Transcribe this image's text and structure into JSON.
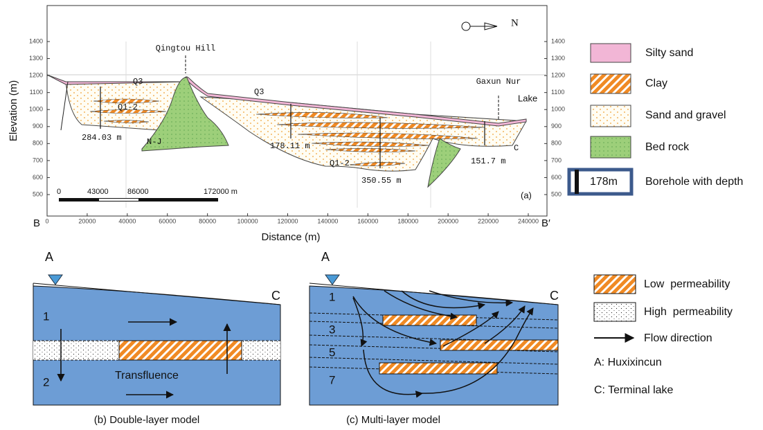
{
  "panel_a": {
    "y_axis_title": "Elevation (m)",
    "x_axis_title": "Distance (m)",
    "yticks": [
      500,
      600,
      700,
      800,
      900,
      1000,
      1100,
      1200,
      1300,
      1400
    ],
    "xticks": [
      0,
      20000,
      40000,
      60000,
      80000,
      100000,
      120000,
      140000,
      160000,
      180000,
      200000,
      220000,
      240000
    ],
    "section_start": "B",
    "section_end": "B′",
    "north": "N",
    "panel_label": "(a)",
    "hill": "Qingtou Hill",
    "lake_name": "Gaxun Nur",
    "lake": "Lake",
    "units": [
      "Q3",
      "Q3",
      "Q1-2",
      "Q1-2",
      "N-J",
      "C"
    ],
    "boreholes": [
      "284.03 m",
      "178.11 m",
      "350.55 m",
      "151.7 m"
    ],
    "scale_bar": [
      "0",
      "43000",
      "86000",
      "172000 m"
    ]
  },
  "legend_a": {
    "items": [
      "Silty sand",
      "Clay",
      "Sand and gravel",
      "Bed rock"
    ],
    "borehole_symbol": "178m",
    "borehole_label": "Borehole with depth"
  },
  "panel_b": {
    "point_a": "A",
    "point_c": "C",
    "layers": [
      "1",
      "2"
    ],
    "flow_label": "Transfluence",
    "caption": "(b) Double-layer model"
  },
  "panel_c": {
    "point_a": "A",
    "point_c": "C",
    "layers": [
      "1",
      "3",
      "5",
      "7"
    ],
    "caption": "(c) Multi-layer model"
  },
  "legend_b": {
    "items": [
      "Low  permeability",
      "High  permeability",
      "Flow direction"
    ],
    "notes": [
      "A: Huxixincun",
      "C: Terminal lake"
    ]
  }
}
